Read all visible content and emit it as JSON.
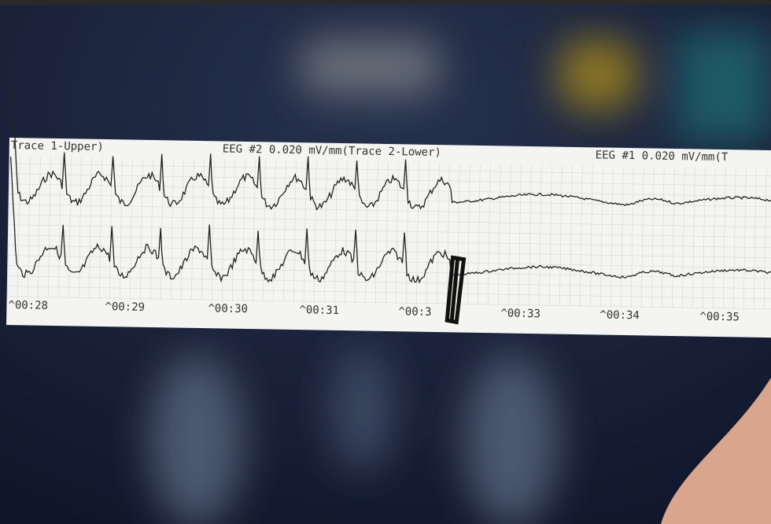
{
  "strip": {
    "header": [
      "Trace 1-Upper)",
      "EEG #2 0.020 mV/mm(Trace 2-Lower)",
      "EEG #1 0.020 mV/mm(T"
    ],
    "time_marks": [
      "^00:28",
      "^00:29",
      "^00:30",
      "^00:31",
      "^00:3",
      "^00:33",
      "^00:34",
      "^00:35"
    ]
  }
}
